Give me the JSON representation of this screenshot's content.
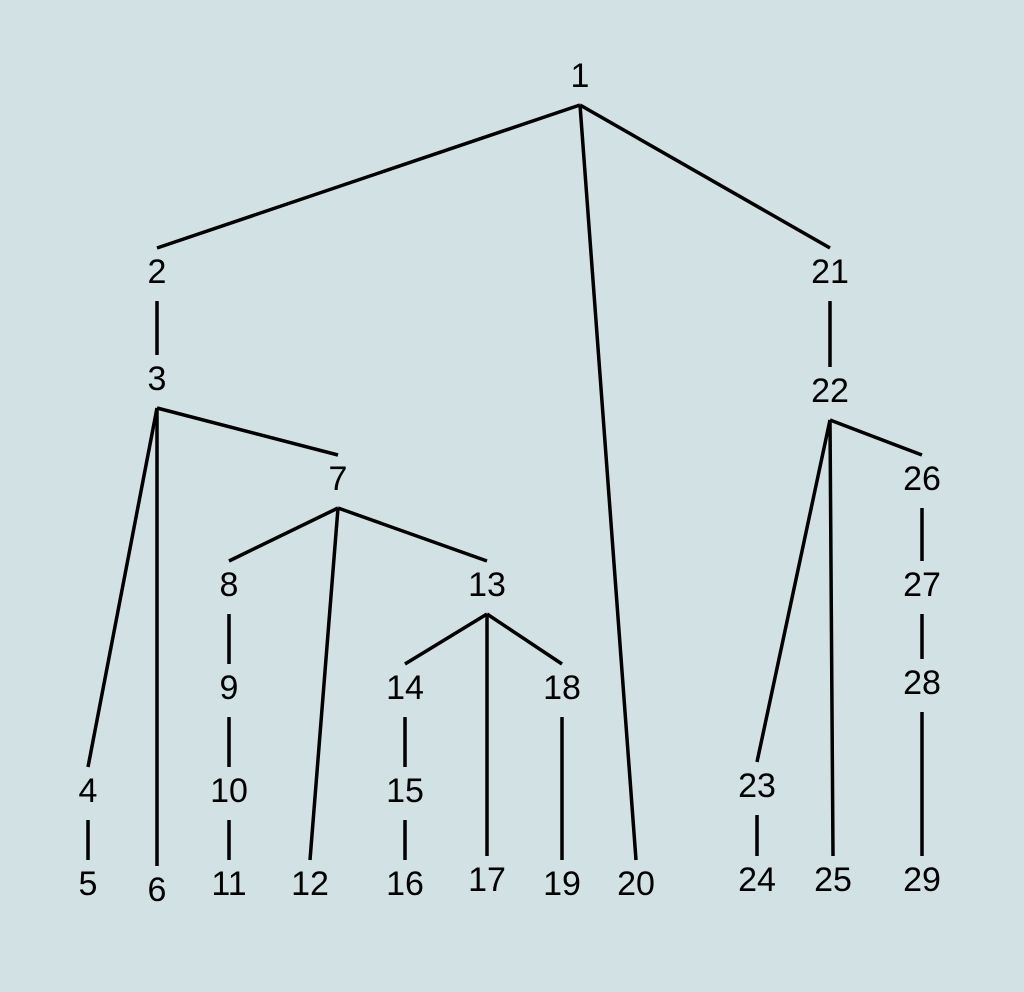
{
  "colors": {
    "background": "#d2e1e3",
    "edge": "#000000",
    "label": "#000000"
  },
  "tree": {
    "nodes": [
      {
        "id": "1",
        "label": "1"
      },
      {
        "id": "2",
        "label": "2"
      },
      {
        "id": "3",
        "label": "3"
      },
      {
        "id": "4",
        "label": "4"
      },
      {
        "id": "5",
        "label": "5"
      },
      {
        "id": "6",
        "label": "6"
      },
      {
        "id": "7",
        "label": "7"
      },
      {
        "id": "8",
        "label": "8"
      },
      {
        "id": "9",
        "label": "9"
      },
      {
        "id": "10",
        "label": "10"
      },
      {
        "id": "11",
        "label": "11"
      },
      {
        "id": "12",
        "label": "12"
      },
      {
        "id": "13",
        "label": "13"
      },
      {
        "id": "14",
        "label": "14"
      },
      {
        "id": "15",
        "label": "15"
      },
      {
        "id": "16",
        "label": "16"
      },
      {
        "id": "17",
        "label": "17"
      },
      {
        "id": "18",
        "label": "18"
      },
      {
        "id": "19",
        "label": "19"
      },
      {
        "id": "20",
        "label": "20"
      },
      {
        "id": "21",
        "label": "21"
      },
      {
        "id": "22",
        "label": "22"
      },
      {
        "id": "23",
        "label": "23"
      },
      {
        "id": "24",
        "label": "24"
      },
      {
        "id": "25",
        "label": "25"
      },
      {
        "id": "26",
        "label": "26"
      },
      {
        "id": "27",
        "label": "27"
      },
      {
        "id": "28",
        "label": "28"
      },
      {
        "id": "29",
        "label": "29"
      }
    ],
    "edges": [
      {
        "from": "1",
        "to": "2"
      },
      {
        "from": "1",
        "to": "20"
      },
      {
        "from": "1",
        "to": "21"
      },
      {
        "from": "2",
        "to": "3"
      },
      {
        "from": "3",
        "to": "4"
      },
      {
        "from": "3",
        "to": "6"
      },
      {
        "from": "3",
        "to": "7"
      },
      {
        "from": "4",
        "to": "5"
      },
      {
        "from": "7",
        "to": "8"
      },
      {
        "from": "7",
        "to": "12"
      },
      {
        "from": "7",
        "to": "13"
      },
      {
        "from": "8",
        "to": "9"
      },
      {
        "from": "9",
        "to": "10"
      },
      {
        "from": "10",
        "to": "11"
      },
      {
        "from": "13",
        "to": "14"
      },
      {
        "from": "13",
        "to": "17"
      },
      {
        "from": "13",
        "to": "18"
      },
      {
        "from": "14",
        "to": "15"
      },
      {
        "from": "15",
        "to": "16"
      },
      {
        "from": "18",
        "to": "19"
      },
      {
        "from": "21",
        "to": "22"
      },
      {
        "from": "22",
        "to": "23"
      },
      {
        "from": "22",
        "to": "25"
      },
      {
        "from": "22",
        "to": "26"
      },
      {
        "from": "23",
        "to": "24"
      },
      {
        "from": "26",
        "to": "27"
      },
      {
        "from": "27",
        "to": "28"
      },
      {
        "from": "28",
        "to": "29"
      }
    ]
  }
}
